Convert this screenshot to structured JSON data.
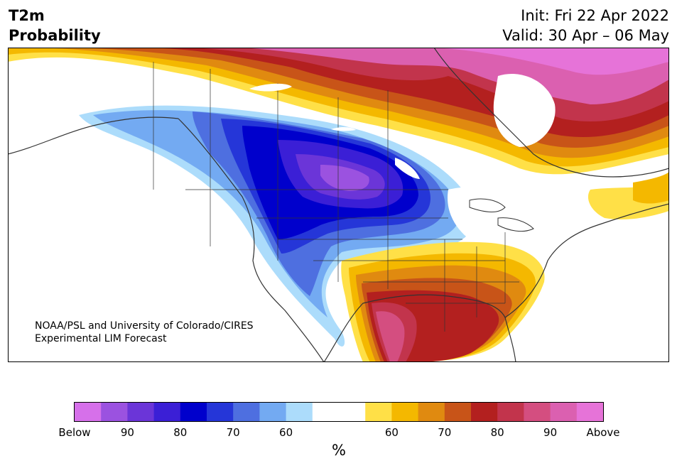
{
  "title": {
    "line1": "T2m",
    "line2": "Probability"
  },
  "init": "Init: Fri 22 Apr 2022",
  "valid": "Valid: 30 Apr – 06 May",
  "credit": {
    "line1": "NOAA/PSL and University of Colorado/CIRES",
    "line2": "Experimental LIM Forecast"
  },
  "colorbar": {
    "colors": [
      "#d670ea",
      "#9b52e0",
      "#6b35d8",
      "#3b1fd6",
      "#0000cc",
      "#2536d8",
      "#4e6fe0",
      "#73aaf2",
      "#acdcfb",
      "#ffffff",
      "#ffffff",
      "#ffe047",
      "#f4b800",
      "#e08a10",
      "#c85418",
      "#b3201f",
      "#c2344c",
      "#d44e80",
      "#db60b0",
      "#e673d8"
    ],
    "tick_labels": [
      "Below",
      "90",
      "80",
      "70",
      "60",
      "60",
      "70",
      "80",
      "90",
      "Above"
    ],
    "unit": "%"
  }
}
